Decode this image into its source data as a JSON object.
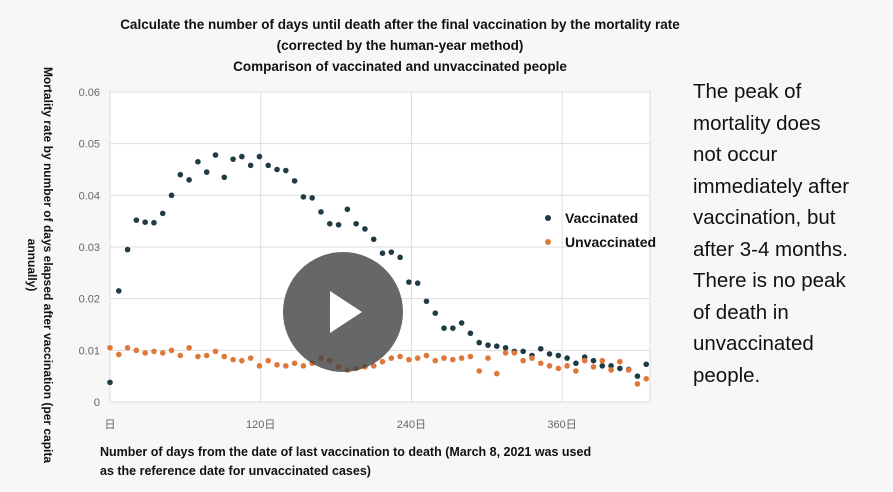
{
  "title": [
    "Calculate the number of days until death after the final vaccination by the mortality rate",
    "(corrected by the human-year method)",
    "Comparison of vaccinated and unvaccinated people"
  ],
  "ylabel": "Mortality rate by number of days elapsed after vaccination (per capita annually)",
  "xlabel": [
    "Number of days from the date of last vaccination to death (March 8, 2021 was used",
    "as the reference date for unvaccinated cases)"
  ],
  "note": [
    "The peak of",
    "mortality does",
    "not occur",
    "immediately after",
    "vaccination, but",
    "after 3-4 months.",
    "There is no peak",
    "of death in",
    "unvaccinated",
    "people."
  ],
  "colors": {
    "vaccinated": "#1f3b44",
    "unvaccinated": "#e0773a",
    "grid": "#dddddd"
  },
  "chart_data": {
    "type": "scatter",
    "xlim": [
      0,
      430
    ],
    "ylim": [
      0,
      0.06
    ],
    "x_ticks": [
      0,
      120,
      240,
      360
    ],
    "x_tick_labels": [
      "日",
      "120日",
      "240日",
      "360日"
    ],
    "y_ticks": [
      0,
      0.01,
      0.02,
      0.03,
      0.04,
      0.05,
      0.06
    ],
    "y_tick_labels": [
      "0",
      "0.01",
      "0.02",
      "0.03",
      "0.04",
      "0.05",
      "0.06"
    ],
    "grid": true,
    "legend_position": "right",
    "series": [
      {
        "name": "Vaccinated",
        "color": "#1f3b44",
        "points": [
          [
            0,
            0.0038
          ],
          [
            7,
            0.0215
          ],
          [
            14,
            0.0295
          ],
          [
            21,
            0.0352
          ],
          [
            28,
            0.0348
          ],
          [
            35,
            0.0347
          ],
          [
            42,
            0.0365
          ],
          [
            49,
            0.04
          ],
          [
            56,
            0.044
          ],
          [
            63,
            0.043
          ],
          [
            70,
            0.0465
          ],
          [
            77,
            0.0445
          ],
          [
            84,
            0.0478
          ],
          [
            91,
            0.0435
          ],
          [
            98,
            0.047
          ],
          [
            105,
            0.0475
          ],
          [
            112,
            0.0458
          ],
          [
            119,
            0.0475
          ],
          [
            126,
            0.0458
          ],
          [
            133,
            0.045
          ],
          [
            140,
            0.0448
          ],
          [
            147,
            0.0428
          ],
          [
            154,
            0.0397
          ],
          [
            161,
            0.0395
          ],
          [
            168,
            0.0368
          ],
          [
            175,
            0.0345
          ],
          [
            182,
            0.0343
          ],
          [
            189,
            0.0373
          ],
          [
            196,
            0.0345
          ],
          [
            203,
            0.0335
          ],
          [
            210,
            0.0315
          ],
          [
            217,
            0.0288
          ],
          [
            224,
            0.029
          ],
          [
            231,
            0.028
          ],
          [
            238,
            0.0232
          ],
          [
            245,
            0.023
          ],
          [
            252,
            0.0195
          ],
          [
            259,
            0.0172
          ],
          [
            266,
            0.0143
          ],
          [
            273,
            0.0143
          ],
          [
            280,
            0.0153
          ],
          [
            287,
            0.0133
          ],
          [
            294,
            0.0115
          ],
          [
            301,
            0.011
          ],
          [
            308,
            0.0108
          ],
          [
            315,
            0.0105
          ],
          [
            322,
            0.0098
          ],
          [
            329,
            0.0098
          ],
          [
            336,
            0.009
          ],
          [
            343,
            0.0103
          ],
          [
            350,
            0.0093
          ],
          [
            357,
            0.009
          ],
          [
            364,
            0.0085
          ],
          [
            371,
            0.0075
          ],
          [
            378,
            0.0087
          ],
          [
            385,
            0.008
          ],
          [
            392,
            0.007
          ],
          [
            399,
            0.007
          ],
          [
            406,
            0.0065
          ],
          [
            413,
            0.0063
          ],
          [
            420,
            0.005
          ],
          [
            427,
            0.0073
          ]
        ]
      },
      {
        "name": "Unvaccinated",
        "color": "#e0773a",
        "points": [
          [
            0,
            0.0105
          ],
          [
            7,
            0.0092
          ],
          [
            14,
            0.0105
          ],
          [
            21,
            0.01
          ],
          [
            28,
            0.0095
          ],
          [
            35,
            0.0098
          ],
          [
            42,
            0.0095
          ],
          [
            49,
            0.01
          ],
          [
            56,
            0.009
          ],
          [
            63,
            0.0105
          ],
          [
            70,
            0.0088
          ],
          [
            77,
            0.009
          ],
          [
            84,
            0.0098
          ],
          [
            91,
            0.0088
          ],
          [
            98,
            0.0082
          ],
          [
            105,
            0.008
          ],
          [
            112,
            0.0085
          ],
          [
            119,
            0.007
          ],
          [
            126,
            0.008
          ],
          [
            133,
            0.0072
          ],
          [
            140,
            0.007
          ],
          [
            147,
            0.0075
          ],
          [
            154,
            0.007
          ],
          [
            161,
            0.0075
          ],
          [
            168,
            0.0085
          ],
          [
            175,
            0.008
          ],
          [
            182,
            0.0068
          ],
          [
            189,
            0.0062
          ],
          [
            196,
            0.0065
          ],
          [
            203,
            0.0068
          ],
          [
            210,
            0.007
          ],
          [
            217,
            0.0078
          ],
          [
            224,
            0.0085
          ],
          [
            231,
            0.0088
          ],
          [
            238,
            0.0082
          ],
          [
            245,
            0.0085
          ],
          [
            252,
            0.009
          ],
          [
            259,
            0.008
          ],
          [
            266,
            0.0085
          ],
          [
            273,
            0.0082
          ],
          [
            280,
            0.0085
          ],
          [
            287,
            0.0088
          ],
          [
            294,
            0.006
          ],
          [
            301,
            0.0085
          ],
          [
            308,
            0.0055
          ],
          [
            315,
            0.0095
          ],
          [
            322,
            0.0095
          ],
          [
            329,
            0.008
          ],
          [
            336,
            0.0085
          ],
          [
            343,
            0.0075
          ],
          [
            350,
            0.007
          ],
          [
            357,
            0.0065
          ],
          [
            364,
            0.007
          ],
          [
            371,
            0.006
          ],
          [
            378,
            0.008
          ],
          [
            385,
            0.0068
          ],
          [
            392,
            0.008
          ],
          [
            399,
            0.0062
          ],
          [
            406,
            0.0078
          ],
          [
            413,
            0.0062
          ],
          [
            420,
            0.0035
          ],
          [
            427,
            0.0045
          ]
        ]
      }
    ]
  },
  "player": {
    "icon": "play-icon"
  }
}
